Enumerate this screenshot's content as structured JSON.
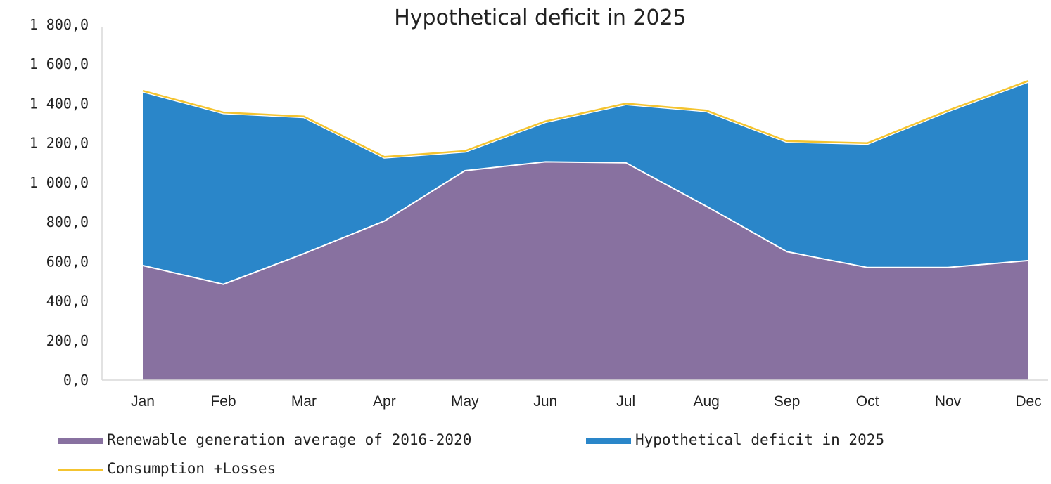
{
  "chart_data": {
    "type": "area",
    "title": "Hypothetical deficit in 2025",
    "xlabel": "",
    "ylabel": "",
    "categories": [
      "Jan",
      "Feb",
      "Mar",
      "Apr",
      "May",
      "Jun",
      "Jul",
      "Aug",
      "Sep",
      "Oct",
      "Nov",
      "Dec"
    ],
    "ylim": [
      0,
      1800
    ],
    "yticks": [
      0,
      200,
      400,
      600,
      800,
      1000,
      1200,
      1400,
      1600,
      1800
    ],
    "ytick_labels": [
      "0,0",
      "200,0",
      "400,0",
      "600,0",
      "800,0",
      "1 000,0",
      "1 200,0",
      "1 400,0",
      "1 600,0",
      "1 800,0"
    ],
    "grid": false,
    "legend_position": "bottom",
    "series": [
      {
        "name": "Renewable generation average of 2016-2020",
        "kind": "stacked-area",
        "color": "#8871a0",
        "values": [
          580,
          485,
          640,
          805,
          1060,
          1105,
          1100,
          880,
          650,
          570,
          570,
          605
        ]
      },
      {
        "name": "Hypothetical deficit in 2025",
        "kind": "stacked-area",
        "color": "#2a86c9",
        "values": [
          885,
          870,
          695,
          325,
          100,
          205,
          300,
          485,
          560,
          630,
          795,
          910
        ]
      },
      {
        "name": "Consumption +Losses",
        "kind": "line",
        "color": "#f4c430",
        "values": [
          1465,
          1355,
          1335,
          1130,
          1160,
          1310,
          1400,
          1365,
          1210,
          1200,
          1365,
          1515
        ]
      }
    ]
  }
}
